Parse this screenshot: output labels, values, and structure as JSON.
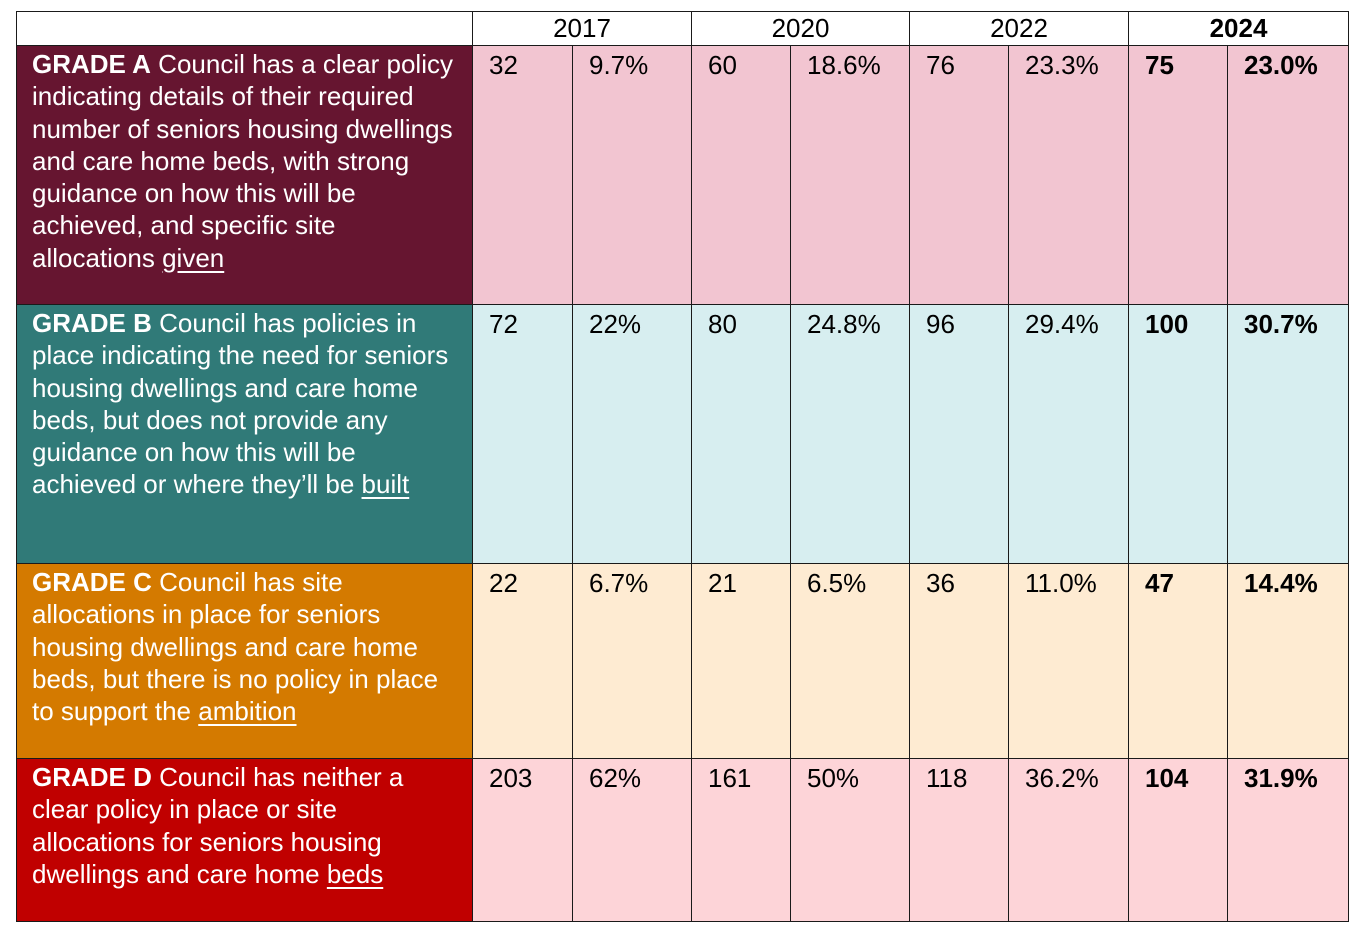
{
  "years": [
    "2017",
    "2020",
    "2022",
    "2024"
  ],
  "rows": [
    {
      "grade": "GRADE A",
      "desc": " Council has a clear policy indicating details of their required number of seniors housing dwellings and care home beds, with strong guidance on how this will be achieved, and specific site allocations ",
      "last_word": "given",
      "label_color": "#661530",
      "cell_color": "#f2c5d1",
      "values": [
        "32",
        "9.7%",
        "60",
        "18.6%",
        "76",
        "23.3%",
        "75",
        "23.0%"
      ]
    },
    {
      "grade": "GRADE B",
      "desc": " Council has policies in place indicating the need for seniors housing dwellings and care home beds, but does not provide any guidance on how this will be achieved or where they’ll be ",
      "last_word": "built",
      "label_color": "#307a78",
      "cell_color": "#d7eef0",
      "values": [
        "72",
        "22%",
        "80",
        "24.8%",
        "96",
        "29.4%",
        "100",
        "30.7%"
      ]
    },
    {
      "grade": "GRADE C",
      "desc": " Council has site allocations in place for seniors housing dwellings and care home beds, but there is no policy in place to support the ",
      "last_word": "ambition",
      "label_color": "#d47a00",
      "cell_color": "#feebd2",
      "values": [
        "22",
        "6.7%",
        "21",
        "6.5%",
        "36",
        "11.0%",
        "47",
        "14.4%"
      ]
    },
    {
      "grade": "GRADE D",
      "desc": " Council has neither a clear policy in place or site allocations for seniors housing dwellings and care home ",
      "last_word": "beds",
      "label_color": "#c00000",
      "cell_color": "#fdd4d8",
      "values": [
        "203",
        "62%",
        "161",
        "50%",
        "118",
        "36.2%",
        "104",
        "31.9%"
      ]
    }
  ]
}
